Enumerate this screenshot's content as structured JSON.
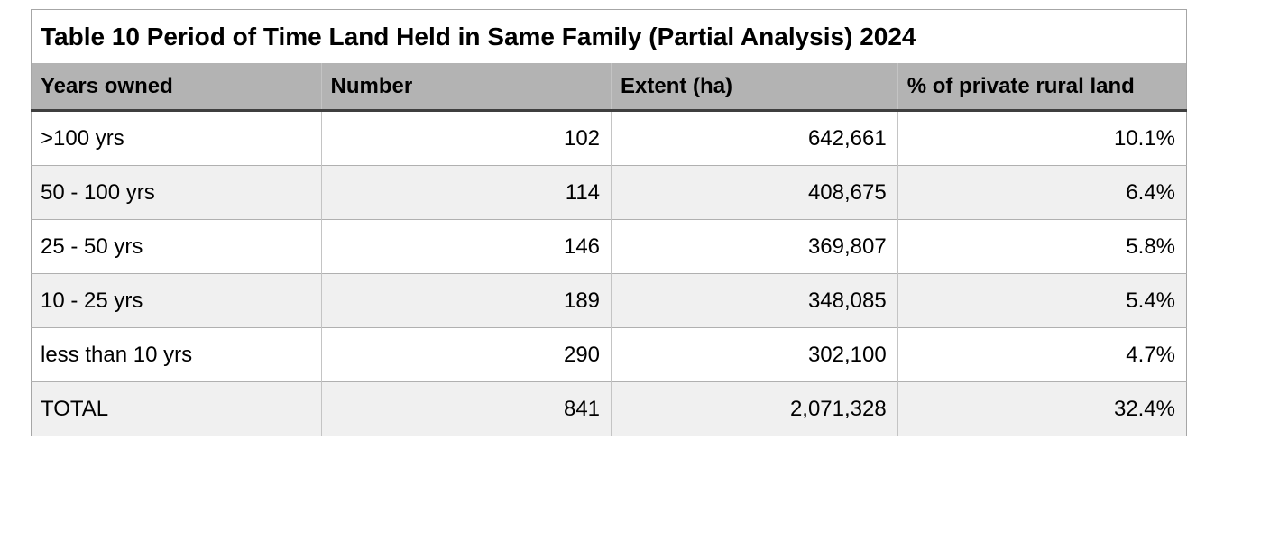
{
  "title": "Table 10 Period of Time Land Held in Same Family (Partial Analysis) 2024",
  "table": {
    "columns": [
      "Years owned",
      "Number",
      "Extent (ha)",
      "% of private rural land"
    ],
    "rows": [
      {
        "years": ">100 yrs",
        "number": "102",
        "extent": "642,661",
        "percent": "10.1%"
      },
      {
        "years": "50 - 100 yrs",
        "number": "114",
        "extent": "408,675",
        "percent": "6.4%"
      },
      {
        "years": "25 - 50 yrs",
        "number": "146",
        "extent": "369,807",
        "percent": "5.8%"
      },
      {
        "years": "10 - 25 yrs",
        "number": "189",
        "extent": "348,085",
        "percent": "5.4%"
      },
      {
        "years": "less than 10 yrs",
        "number": "290",
        "extent": "302,100",
        "percent": "4.7%"
      },
      {
        "years": "TOTAL",
        "number": "841",
        "extent": "2,071,328",
        "percent": "32.4%"
      }
    ]
  },
  "colors": {
    "header_background": "#b3b3b3",
    "stripe_background": "#f0f0f0",
    "header_underline": "#3f3f3f",
    "grid_line": "#b0b0b0",
    "outer_border": "#a6a6a6",
    "text": "#000000",
    "page_background": "#ffffff"
  },
  "chart_data": {
    "type": "table",
    "title": "Table 10 Period of Time Land Held in Same Family (Partial Analysis) 2024",
    "columns": [
      "Years owned",
      "Number",
      "Extent (ha)",
      "% of private rural land"
    ],
    "categories": [
      ">100 yrs",
      "50 - 100 yrs",
      "25 - 50 yrs",
      "10 - 25 yrs",
      "less than 10 yrs",
      "TOTAL"
    ],
    "series": [
      {
        "name": "Number",
        "values": [
          102,
          114,
          146,
          189,
          290,
          841
        ]
      },
      {
        "name": "Extent (ha)",
        "values": [
          642661,
          408675,
          369807,
          348085,
          302100,
          2071328
        ]
      },
      {
        "name": "% of private rural land",
        "values": [
          10.1,
          6.4,
          5.8,
          5.4,
          4.7,
          32.4
        ]
      }
    ]
  }
}
